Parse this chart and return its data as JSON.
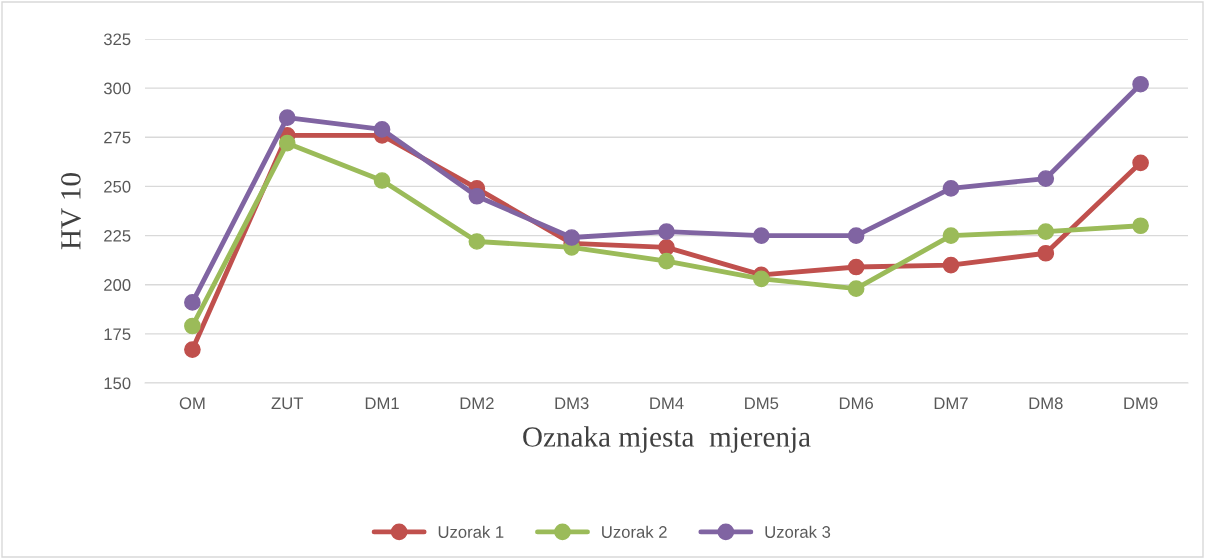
{
  "chart_data": {
    "type": "line",
    "xlabel": "Oznaka mjesta  mjerenja",
    "ylabel": "HV 10",
    "categories": [
      "OM",
      "ZUT",
      "DM1",
      "DM2",
      "DM3",
      "DM4",
      "DM5",
      "DM6",
      "DM7",
      "DM8",
      "DM9"
    ],
    "series": [
      {
        "name": "Uzorak 1",
        "color": "#c0504d",
        "values": [
          167,
          276,
          276,
          249,
          221,
          219,
          205,
          209,
          210,
          216,
          262
        ]
      },
      {
        "name": "Uzorak 2",
        "color": "#9bbb59",
        "values": [
          179,
          272,
          253,
          222,
          219,
          212,
          203,
          198,
          225,
          227,
          230
        ]
      },
      {
        "name": "Uzorak 3",
        "color": "#8064a2",
        "values": [
          191,
          285,
          279,
          245,
          224,
          227,
          225,
          225,
          249,
          254,
          302
        ]
      }
    ],
    "ylim": [
      150,
      325
    ],
    "yticks": [
      150,
      175,
      200,
      225,
      250,
      275,
      300,
      325
    ],
    "grid": "y",
    "legend": "bottom",
    "marker": "circle",
    "line_style": "solid"
  }
}
